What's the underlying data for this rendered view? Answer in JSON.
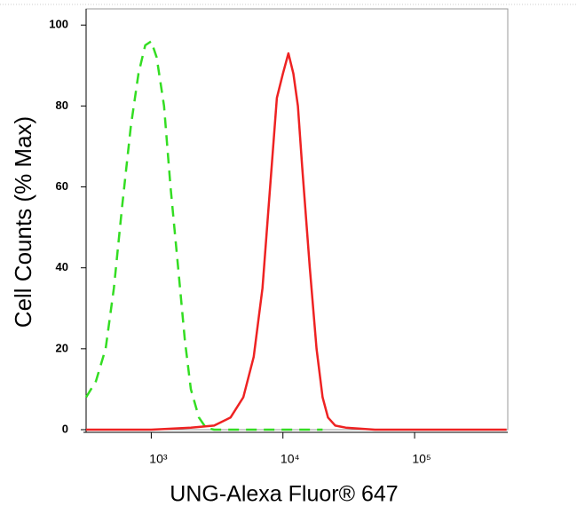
{
  "chart_data": {
    "type": "line",
    "xlabel": "UNG-Alexa Fluor® 647",
    "ylabel": "Cell Counts (% Max)",
    "xscale": "log",
    "xlim": [
      320,
      510000
    ],
    "ylim": [
      0,
      104
    ],
    "xticks": [
      {
        "value": 1000,
        "label": "10³"
      },
      {
        "value": 10000,
        "label": "10⁴"
      },
      {
        "value": 100000,
        "label": "10⁵"
      }
    ],
    "yticks": [
      0,
      20,
      40,
      60,
      80,
      100
    ],
    "series": [
      {
        "color": "#33dd22",
        "dashed": true,
        "x": [
          320,
          380,
          450,
          520,
          600,
          700,
          800,
          900,
          1000,
          1100,
          1250,
          1400,
          1600,
          1800,
          2000,
          2300,
          2600,
          3000,
          5000,
          10000,
          20000
        ],
        "values": [
          8,
          12,
          20,
          35,
          55,
          75,
          88,
          95,
          96,
          92,
          80,
          60,
          40,
          22,
          10,
          3,
          0.5,
          0,
          0,
          0,
          0
        ]
      },
      {
        "color": "#ee2222",
        "dashed": false,
        "x": [
          320,
          1000,
          2000,
          3000,
          4000,
          5000,
          6000,
          7000,
          8000,
          9000,
          10000,
          11000,
          12000,
          13000,
          14000,
          16000,
          18000,
          20000,
          22000,
          25000,
          30000,
          50000,
          500000
        ],
        "values": [
          0,
          0,
          0.5,
          1,
          3,
          8,
          18,
          35,
          60,
          82,
          88,
          93,
          88,
          80,
          65,
          40,
          20,
          8,
          3,
          1,
          0.5,
          0,
          0
        ]
      }
    ]
  }
}
